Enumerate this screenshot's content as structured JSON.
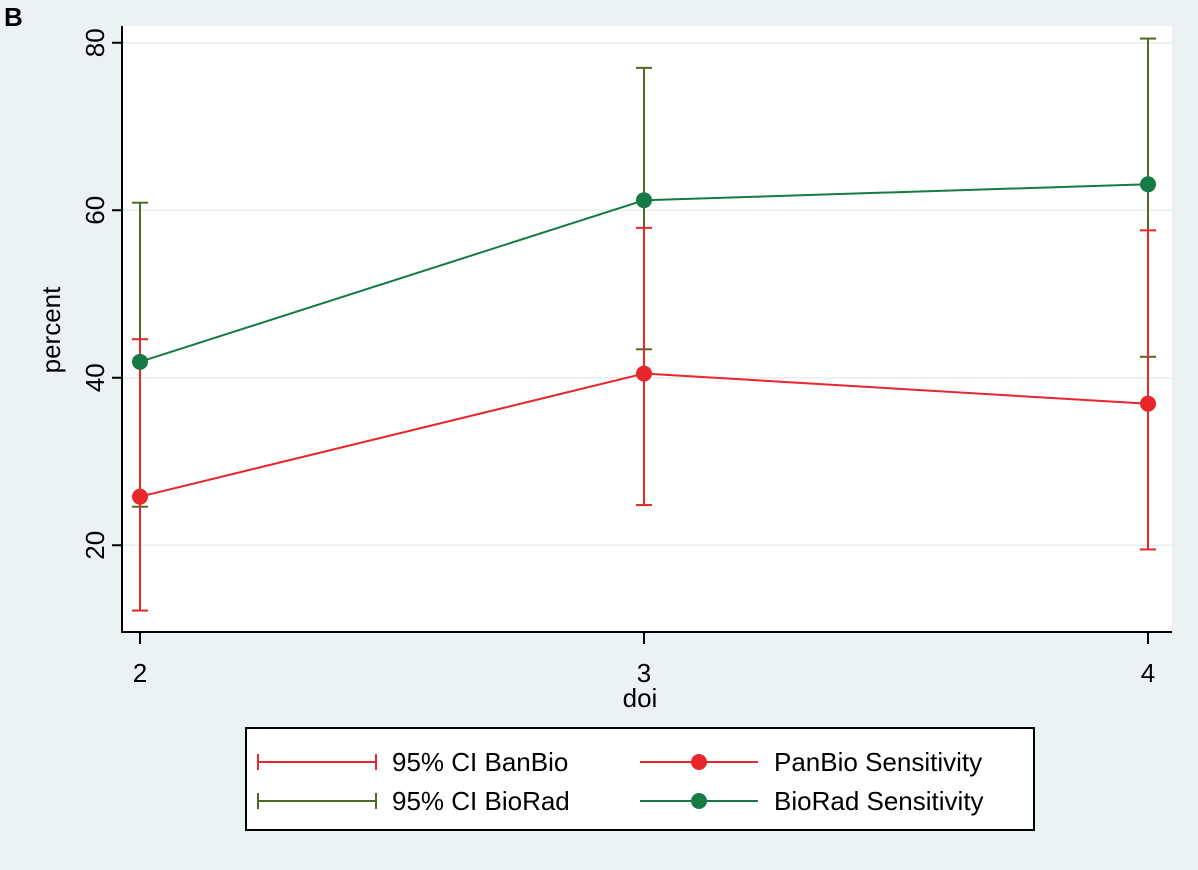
{
  "panel_label": "B",
  "colors": {
    "background": "#eaf2f3",
    "plot_background": "#ffffff",
    "panbio": "#e8262b",
    "biorad_line": "#157a43",
    "biorad_ci": "#4d6b26"
  },
  "chart_data": {
    "type": "line",
    "title": "",
    "xlabel": "doi",
    "ylabel": "percent",
    "x": [
      2,
      3,
      4
    ],
    "x_ticks": [
      "2",
      "3",
      "4"
    ],
    "y_ticks": [
      "20",
      "40",
      "60",
      "80"
    ],
    "xlim": [
      2,
      4
    ],
    "ylim": [
      10,
      82
    ],
    "grid": true,
    "series": [
      {
        "key": "panbio",
        "name": "PanBio Sensitivity",
        "values": [
          25.8,
          40.5,
          36.9
        ],
        "ci_name": "95% CI BanBio",
        "ci_low": [
          12.2,
          24.8,
          19.5
        ],
        "ci_high": [
          44.6,
          57.9,
          57.6
        ]
      },
      {
        "key": "biorad",
        "name": "BioRad Sensitivity",
        "values": [
          41.9,
          61.2,
          63.1
        ],
        "ci_name": "95% CI BioRad",
        "ci_low": [
          24.6,
          43.4,
          42.5
        ],
        "ci_high": [
          60.9,
          77.0,
          80.5
        ]
      }
    ],
    "legend": {
      "position": "bottom",
      "entries": [
        "95% CI BanBio",
        "PanBio Sensitivity",
        "95% CI BioRad",
        "BioRad Sensitivity"
      ]
    }
  }
}
